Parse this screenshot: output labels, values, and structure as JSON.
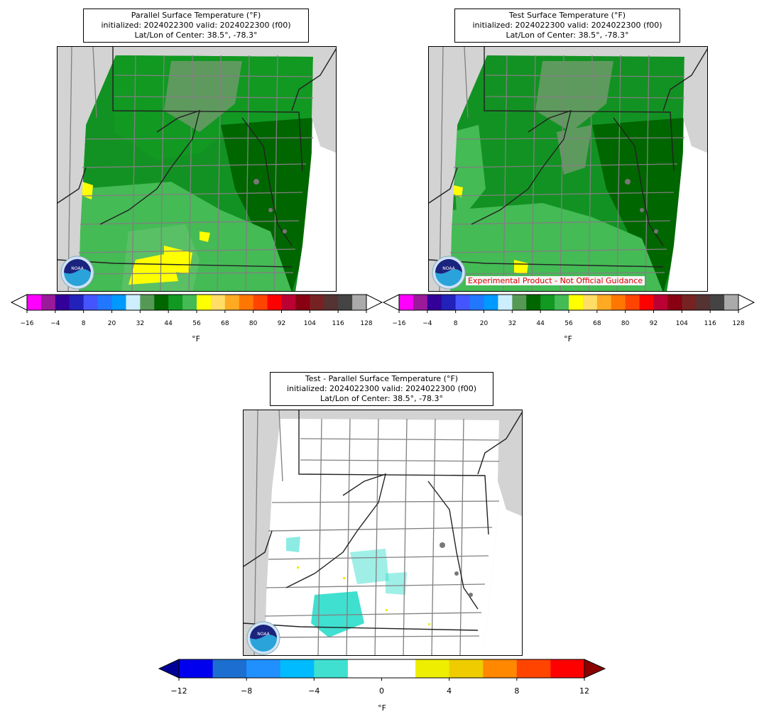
{
  "panels": [
    {
      "id": "parallel",
      "title_line1": "Parallel Surface Temperature (°F)",
      "title_line2": "initialized: 2024022300 valid: 2024022300 (f00)",
      "title_line3": "Lat/Lon of Center: 38.5°, -78.3°"
    },
    {
      "id": "test",
      "title_line1": "Test Surface Temperature (°F)",
      "title_line2": "initialized: 2024022300 valid: 2024022300 (f00)",
      "title_line3": "Lat/Lon of Center: 38.5°, -78.3°",
      "banner": "Experimental Product - Not Official Guidance"
    },
    {
      "id": "difference",
      "title_line1": "Test - Parallel Surface Temperature (°F)",
      "title_line2": "initialized: 2024022300 valid: 2024022300 (f00)",
      "title_line3": "Lat/Lon of Center: 38.5°, -78.3°"
    }
  ],
  "temp_colorbar": {
    "unit": "°F",
    "ticks": [
      "−16",
      "−4",
      "8",
      "20",
      "32",
      "44",
      "56",
      "68",
      "80",
      "92",
      "104",
      "116",
      "128"
    ],
    "colors": [
      "#ff00ff",
      "#9a1a9a",
      "#330099",
      "#2222bb",
      "#4455ff",
      "#2277ff",
      "#0099ff",
      "#cceeff",
      "#559955",
      "#006600",
      "#119922",
      "#44bb55",
      "#ffff00",
      "#ffdd66",
      "#ffaa22",
      "#ff7700",
      "#ff4400",
      "#ff0000",
      "#bb0033",
      "#880011",
      "#772222",
      "#553333",
      "#444444",
      "#aaaaaa"
    ]
  },
  "diff_colorbar": {
    "unit": "°F",
    "ticks": [
      "−12",
      "−8",
      "−4",
      "0",
      "4",
      "8",
      "12"
    ],
    "colors": [
      "#0000ee",
      "#1c6fd0",
      "#2090ff",
      "#00bbff",
      "#40e0d0",
      "#ffffff",
      "#ffffff",
      "#eeee00",
      "#eecc00",
      "#ff8800",
      "#ff4400",
      "#ff0000"
    ],
    "under_color": "#000099",
    "over_color": "#8b0000"
  },
  "logo": {
    "text": "NOAA",
    "icon": "noaa-logo-icon"
  }
}
